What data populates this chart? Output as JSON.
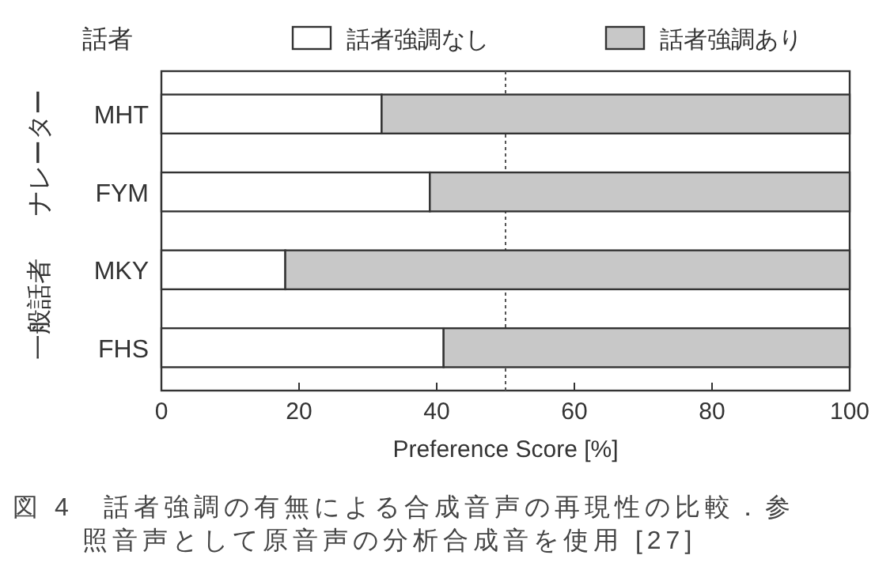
{
  "chart_data": {
    "type": "bar",
    "orientation": "horizontal",
    "stacked": true,
    "ylabel": "話者",
    "xlabel": "Preference Score [%]",
    "categories": [
      "MHT",
      "FYM",
      "MKY",
      "FHS"
    ],
    "series": [
      {
        "name": "話者強調なし",
        "color": "#ffffff",
        "values": [
          32,
          39,
          18,
          41
        ]
      },
      {
        "name": "話者強調あり",
        "color": "#c8c8c8",
        "values": [
          68,
          61,
          82,
          59
        ]
      }
    ],
    "xlim": [
      0,
      100
    ],
    "xticks": [
      0,
      20,
      40,
      60,
      80,
      100
    ],
    "ref_lines": [
      {
        "axis": "x",
        "value": 50,
        "line_style": "dotted",
        "color": "#555555"
      }
    ],
    "legend": "top",
    "annotations": [
      "ナレーター",
      "一般話者",
      "図 4　話者強調の有無による合成音声の再現性の比較．参照音声として原音声の分析合成音を使用 [27]"
    ]
  }
}
